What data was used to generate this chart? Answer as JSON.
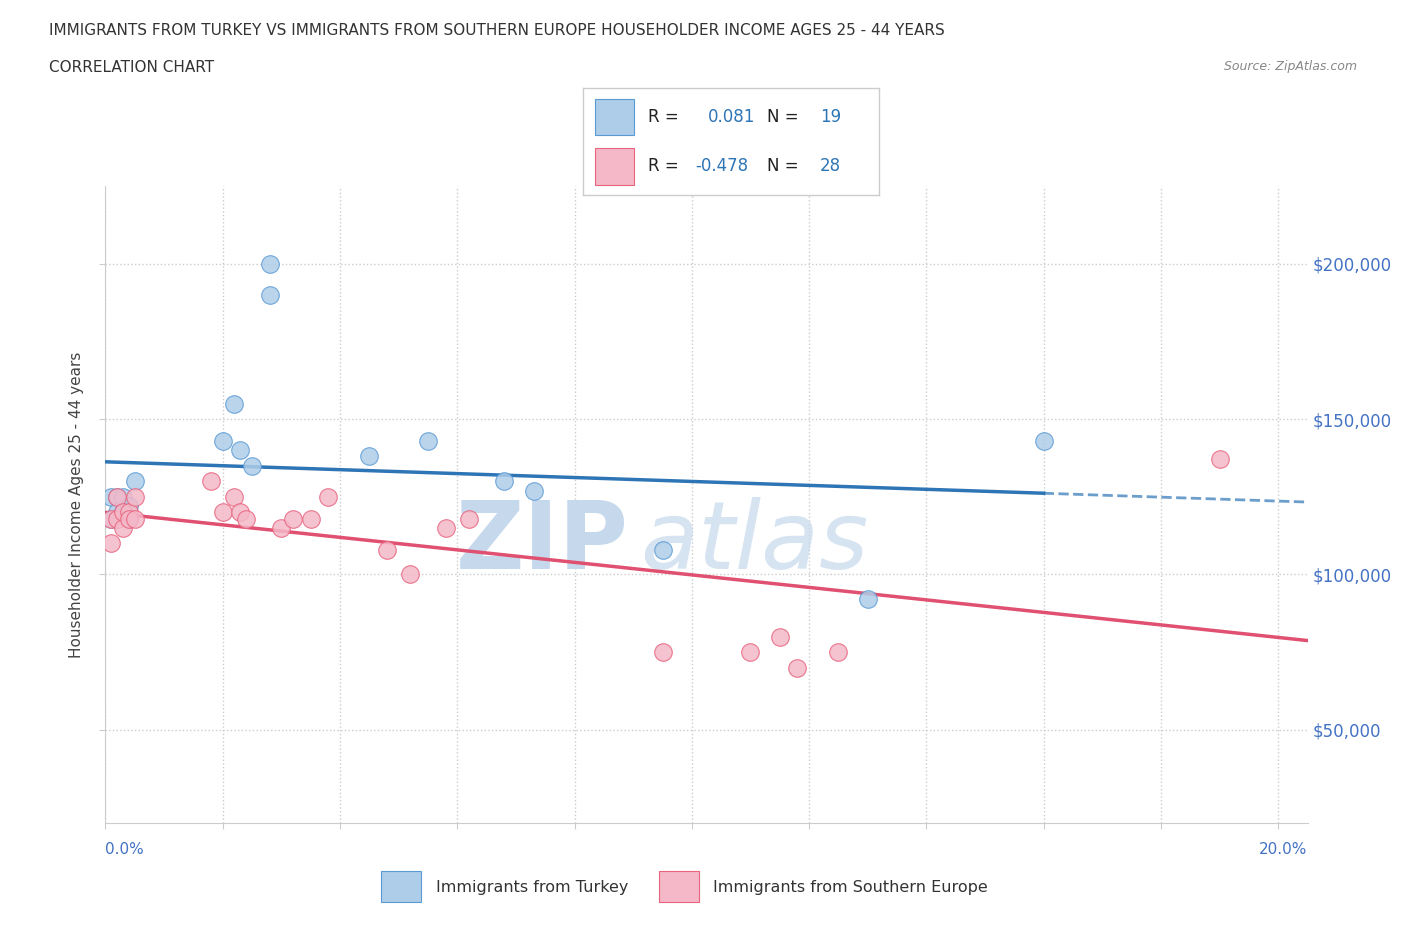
{
  "title_line1": "IMMIGRANTS FROM TURKEY VS IMMIGRANTS FROM SOUTHERN EUROPE HOUSEHOLDER INCOME AGES 25 - 44 YEARS",
  "title_line2": "CORRELATION CHART",
  "source_text": "Source: ZipAtlas.com",
  "ylabel": "Householder Income Ages 25 - 44 years",
  "x_min": 0.0,
  "x_max": 0.205,
  "y_min": 20000,
  "y_max": 225000,
  "y_ticks": [
    50000,
    100000,
    150000,
    200000
  ],
  "y_tick_labels": [
    "$50,000",
    "$100,000",
    "$150,000",
    "$200,000"
  ],
  "turkey_color": "#aecde8",
  "turkey_edge_color": "#5b9bd5",
  "turkey_line_color": "#2e75b6",
  "southern_eu_color": "#f4b8c8",
  "southern_eu_edge_color": "#e8637d",
  "southern_eu_line_color": "#e05070",
  "tick_label_color": "#4472c4",
  "legend_r_color": "#2e75b6",
  "legend_n_color": "#2e75b6",
  "watermark_zip_color": "#c5d8ec",
  "watermark_atlas_color": "#c5d8ec",
  "turkey_x": [
    0.001,
    0.001,
    0.002,
    0.002,
    0.003,
    0.003,
    0.004,
    0.004,
    0.005,
    0.02,
    0.022,
    0.023,
    0.025,
    0.028,
    0.028,
    0.045,
    0.055,
    0.068,
    0.073,
    0.095,
    0.13,
    0.16
  ],
  "turkey_y": [
    125000,
    118000,
    125000,
    120000,
    125000,
    120000,
    118000,
    122000,
    130000,
    143000,
    155000,
    140000,
    135000,
    200000,
    190000,
    138000,
    143000,
    130000,
    127000,
    108000,
    92000,
    143000
  ],
  "southern_x": [
    0.001,
    0.001,
    0.002,
    0.002,
    0.003,
    0.003,
    0.004,
    0.004,
    0.005,
    0.005,
    0.018,
    0.02,
    0.022,
    0.023,
    0.024,
    0.03,
    0.032,
    0.035,
    0.038,
    0.048,
    0.052,
    0.058,
    0.062,
    0.095,
    0.11,
    0.115,
    0.118,
    0.125,
    0.19
  ],
  "southern_y": [
    118000,
    110000,
    125000,
    118000,
    120000,
    115000,
    120000,
    118000,
    125000,
    118000,
    130000,
    120000,
    125000,
    120000,
    118000,
    115000,
    118000,
    118000,
    125000,
    108000,
    100000,
    115000,
    118000,
    75000,
    75000,
    80000,
    70000,
    75000,
    137000
  ]
}
